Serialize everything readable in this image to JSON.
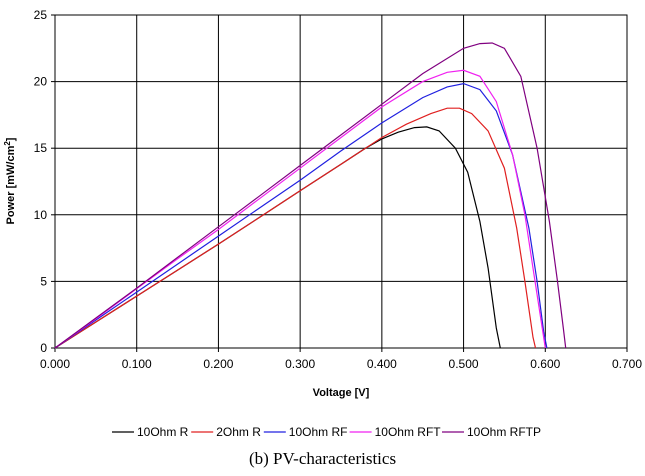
{
  "caption": "(b) PV-characteristics",
  "chart_data": {
    "type": "line",
    "title": "",
    "xlabel": "Voltage [V]",
    "ylabel": "Power [mW/cm",
    "ylabel_superscript": "2",
    "ylabel_suffix": "]",
    "xlim": [
      0,
      0.7
    ],
    "ylim": [
      0,
      25
    ],
    "x_ticks": [
      "0.000",
      "0.100",
      "0.200",
      "0.300",
      "0.400",
      "0.500",
      "0.600",
      "0.700"
    ],
    "y_ticks": [
      "0",
      "5",
      "10",
      "15",
      "20",
      "25"
    ],
    "grid": true,
    "legend_position": "bottom",
    "series": [
      {
        "name": "10Ohm R",
        "color": "#000000",
        "x": [
          0,
          0.05,
          0.1,
          0.15,
          0.2,
          0.25,
          0.3,
          0.35,
          0.38,
          0.4,
          0.42,
          0.44,
          0.455,
          0.47,
          0.49,
          0.505,
          0.52,
          0.53,
          0.54,
          0.545
        ],
        "y": [
          0,
          1.95,
          3.9,
          5.85,
          7.8,
          9.8,
          11.8,
          13.8,
          15.0,
          15.7,
          16.2,
          16.55,
          16.6,
          16.3,
          15.0,
          13.2,
          9.5,
          6.0,
          1.5,
          0
        ]
      },
      {
        "name": "2Ohm R",
        "color": "#e02020",
        "x": [
          0,
          0.05,
          0.1,
          0.15,
          0.2,
          0.25,
          0.3,
          0.35,
          0.4,
          0.43,
          0.46,
          0.48,
          0.495,
          0.51,
          0.53,
          0.55,
          0.565,
          0.575,
          0.585,
          0.588
        ],
        "y": [
          0,
          1.95,
          3.9,
          5.85,
          7.8,
          9.8,
          11.8,
          13.8,
          15.8,
          16.8,
          17.6,
          18.0,
          18.0,
          17.6,
          16.3,
          13.5,
          9.0,
          5.0,
          0.8,
          0
        ]
      },
      {
        "name": "10Ohm RF",
        "color": "#2020e0",
        "x": [
          0,
          0.05,
          0.1,
          0.15,
          0.2,
          0.25,
          0.3,
          0.35,
          0.4,
          0.45,
          0.48,
          0.5,
          0.52,
          0.54,
          0.56,
          0.58,
          0.59,
          0.598,
          0.602
        ],
        "y": [
          0,
          2.1,
          4.2,
          6.3,
          8.4,
          10.5,
          12.6,
          14.8,
          16.9,
          18.8,
          19.6,
          19.85,
          19.4,
          17.8,
          14.5,
          9.0,
          5.0,
          1.2,
          0
        ]
      },
      {
        "name": "10Ohm RFT",
        "color": "#f020f0",
        "x": [
          0,
          0.05,
          0.1,
          0.15,
          0.2,
          0.25,
          0.3,
          0.35,
          0.4,
          0.45,
          0.48,
          0.5,
          0.52,
          0.54,
          0.56,
          0.575,
          0.585,
          0.595,
          0.6
        ],
        "y": [
          0,
          2.2,
          4.45,
          6.7,
          8.9,
          11.2,
          13.5,
          15.8,
          18.1,
          20.0,
          20.7,
          20.85,
          20.4,
          18.5,
          14.5,
          10.0,
          6.0,
          2.0,
          0
        ]
      },
      {
        "name": "10Ohm RFTP",
        "color": "#800080",
        "x": [
          0,
          0.05,
          0.1,
          0.15,
          0.2,
          0.25,
          0.3,
          0.35,
          0.4,
          0.45,
          0.5,
          0.52,
          0.535,
          0.55,
          0.57,
          0.59,
          0.605,
          0.615,
          0.622,
          0.625
        ],
        "y": [
          0,
          2.25,
          4.5,
          6.8,
          9.1,
          11.4,
          13.7,
          16.0,
          18.3,
          20.6,
          22.5,
          22.85,
          22.9,
          22.5,
          20.4,
          15.0,
          9.5,
          5.0,
          1.5,
          0
        ]
      }
    ]
  }
}
